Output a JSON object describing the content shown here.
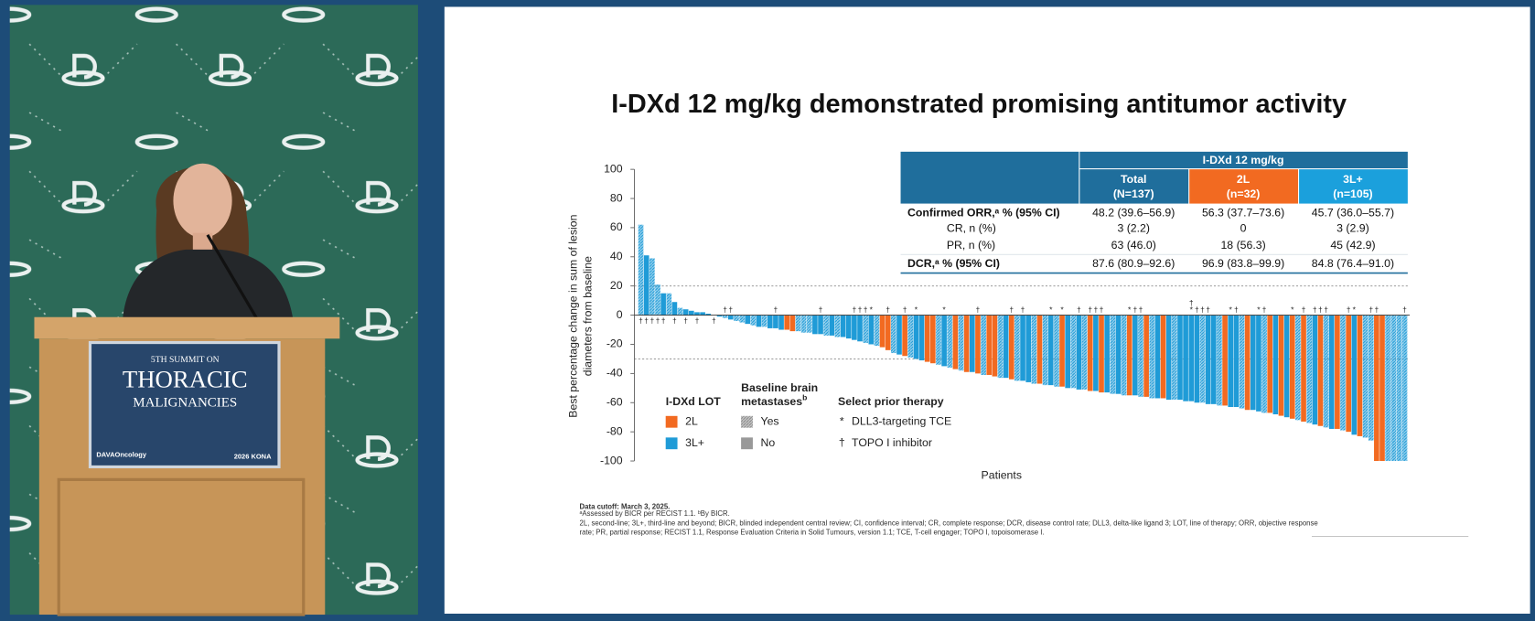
{
  "video": {
    "sign": {
      "line1": "5TH SUMMIT ON",
      "line2": "THORACIC",
      "line3": "MALIGNANCIES",
      "sponsor": "DAVAOncology",
      "event": "2026 KONA"
    }
  },
  "table": {
    "group_header": "I-DXd 12 mg/kg",
    "columns": [
      [
        "Total",
        "(N=137)"
      ],
      [
        "2L",
        "(n=32)"
      ],
      [
        "3L+",
        "(n=105)"
      ]
    ],
    "rows": [
      [
        "Confirmed ORR,ᵃ % (95% CI)",
        "48.2 (39.6–56.9)",
        "56.3 (37.7–73.6)",
        "45.7 (36.0–55.7)"
      ],
      [
        "CR, n (%)",
        "3 (2.2)",
        "0",
        "3 (2.9)"
      ],
      [
        "PR, n (%)",
        "63 (46.0)",
        "18 (56.3)",
        "45 (42.9)"
      ],
      [
        "DCR,ᵃ % (95% CI)",
        "87.6 (80.9–92.6)",
        "96.9 (83.8–99.9)",
        "84.8 (76.4–91.0)"
      ]
    ]
  },
  "chart_data": {
    "type": "waterfall",
    "title": "I-DXd 12 mg/kg demonstrated promising antitumor activity",
    "y_label": [
      "Best percentage change in sum of lesion",
      "diameters from baseline"
    ],
    "x_label": "Patients",
    "ylim": [
      -100,
      100
    ],
    "yticks": [
      -100,
      -80,
      -60,
      -40,
      -20,
      0,
      20,
      40,
      60,
      80,
      100
    ],
    "reference_lines": [
      20,
      -30
    ],
    "values": [
      62,
      41,
      39,
      21,
      15,
      15,
      9,
      5,
      4,
      3,
      2,
      2,
      1,
      0,
      -1,
      -2,
      -3,
      -4,
      -5,
      -6,
      -7,
      -8,
      -8,
      -9,
      -9,
      -10,
      -10,
      -11,
      -11,
      -12,
      -12,
      -13,
      -13,
      -14,
      -14,
      -15,
      -15,
      -16,
      -17,
      -18,
      -19,
      -20,
      -21,
      -22,
      -24,
      -26,
      -27,
      -28,
      -29,
      -30,
      -31,
      -32,
      -33,
      -34,
      -35,
      -36,
      -37,
      -38,
      -39,
      -39,
      -40,
      -41,
      -41,
      -42,
      -43,
      -43,
      -44,
      -45,
      -45,
      -46,
      -47,
      -47,
      -48,
      -48,
      -49,
      -49,
      -50,
      -50,
      -51,
      -51,
      -52,
      -52,
      -53,
      -53,
      -54,
      -54,
      -55,
      -55,
      -55,
      -56,
      -56,
      -57,
      -57,
      -57,
      -58,
      -58,
      -58,
      -59,
      -59,
      -60,
      -60,
      -61,
      -61,
      -62,
      -62,
      -63,
      -63,
      -64,
      -65,
      -65,
      -66,
      -67,
      -67,
      -68,
      -69,
      -70,
      -71,
      -72,
      -73,
      -74,
      -75,
      -76,
      -77,
      -78,
      -78,
      -79,
      -80,
      -82,
      -83,
      -84,
      -86,
      -100,
      -100,
      -100,
      -100,
      -100,
      -100
    ],
    "series": [
      {
        "name": "2L",
        "color": "#f26a21",
        "indices": [
          26,
          27,
          43,
          44,
          47,
          51,
          52,
          56,
          58,
          60,
          62,
          63,
          66,
          71,
          75,
          80,
          82,
          87,
          90,
          93,
          104,
          108,
          112,
          114,
          116,
          118,
          121,
          124,
          126,
          128,
          131,
          132
        ]
      },
      {
        "name": "3L+",
        "color": "#1f9bd7"
      }
    ],
    "lot_title": "I-DXd LOT",
    "brain_title": [
      "Baseline brain",
      "metastases"
    ],
    "brain_title_sup": "b",
    "brain_entries": [
      "Yes",
      "No"
    ],
    "brain_yes_indices": [
      0,
      2,
      3,
      5,
      7,
      15,
      17,
      18,
      20,
      22,
      28,
      29,
      30,
      33,
      35,
      40,
      42,
      45,
      48,
      53,
      55,
      57,
      61,
      64,
      67,
      70,
      72,
      74,
      77,
      79,
      84,
      86,
      89,
      91,
      95,
      100,
      103,
      107,
      111,
      117,
      119,
      122,
      125,
      129,
      130,
      133,
      134,
      135,
      136
    ],
    "prior_title": "Select prior therapy",
    "prior_entries": [
      {
        "symbol": "*",
        "label": "DLL3-targeting TCE"
      },
      {
        "symbol": "†",
        "label": "TOPO I inhibitor"
      }
    ],
    "markers": [
      {
        "index": 0,
        "label": "†"
      },
      {
        "index": 1,
        "label": "†"
      },
      {
        "index": 2,
        "label": "†"
      },
      {
        "index": 3,
        "label": "†"
      },
      {
        "index": 4,
        "label": "†"
      },
      {
        "index": 6,
        "label": "†"
      },
      {
        "index": 8,
        "label": "†"
      },
      {
        "index": 10,
        "label": "†"
      },
      {
        "index": 13,
        "label": "†"
      },
      {
        "index": 15,
        "label": "†"
      },
      {
        "index": 16,
        "label": "†"
      },
      {
        "index": 24,
        "label": "†"
      },
      {
        "index": 32,
        "label": "†"
      },
      {
        "index": 38,
        "label": "†"
      },
      {
        "index": 39,
        "label": "†"
      },
      {
        "index": 40,
        "label": "†"
      },
      {
        "index": 41,
        "label": "*"
      },
      {
        "index": 44,
        "label": "†"
      },
      {
        "index": 47,
        "label": "†"
      },
      {
        "index": 49,
        "label": "*"
      },
      {
        "index": 54,
        "label": "*"
      },
      {
        "index": 60,
        "label": "†"
      },
      {
        "index": 66,
        "label": "†"
      },
      {
        "index": 68,
        "label": "†"
      },
      {
        "index": 73,
        "label": "*"
      },
      {
        "index": 75,
        "label": "*"
      },
      {
        "index": 78,
        "label": "†"
      },
      {
        "index": 80,
        "label": "†"
      },
      {
        "index": 81,
        "label": "†"
      },
      {
        "index": 82,
        "label": "†"
      },
      {
        "index": 87,
        "label": "*"
      },
      {
        "index": 88,
        "label": "†"
      },
      {
        "index": 89,
        "label": "†"
      },
      {
        "index": 98,
        "label": "*"
      },
      {
        "index": 98,
        "label": "†"
      },
      {
        "index": 99,
        "label": "†"
      },
      {
        "index": 100,
        "label": "†"
      },
      {
        "index": 101,
        "label": "†"
      },
      {
        "index": 105,
        "label": "*"
      },
      {
        "index": 106,
        "label": "†"
      },
      {
        "index": 110,
        "label": "*"
      },
      {
        "index": 111,
        "label": "†"
      },
      {
        "index": 116,
        "label": "*"
      },
      {
        "index": 118,
        "label": "†"
      },
      {
        "index": 120,
        "label": "†"
      },
      {
        "index": 121,
        "label": "†"
      },
      {
        "index": 122,
        "label": "†"
      },
      {
        "index": 126,
        "label": "†"
      },
      {
        "index": 127,
        "label": "*"
      },
      {
        "index": 130,
        "label": "†"
      },
      {
        "index": 131,
        "label": "†"
      },
      {
        "index": 136,
        "label": "†"
      }
    ]
  },
  "footnotes": [
    "Data cutoff: March 3, 2025.",
    "ᵃAssessed by BICR per RECIST 1.1. ᵇBy BICR.",
    "2L, second-line; 3L+, third-line and beyond; BICR, blinded independent central review; CI, confidence interval; CR, complete response; DCR, disease control rate; DLL3, delta-like ligand 3; LOT, line of therapy; ORR, objective response",
    "rate; PR, partial response; RECIST 1.1, Response Evaluation Criteria in Solid Tumours, version 1.1; TCE, T-cell engager; TOPO I, topoisomerase I."
  ]
}
